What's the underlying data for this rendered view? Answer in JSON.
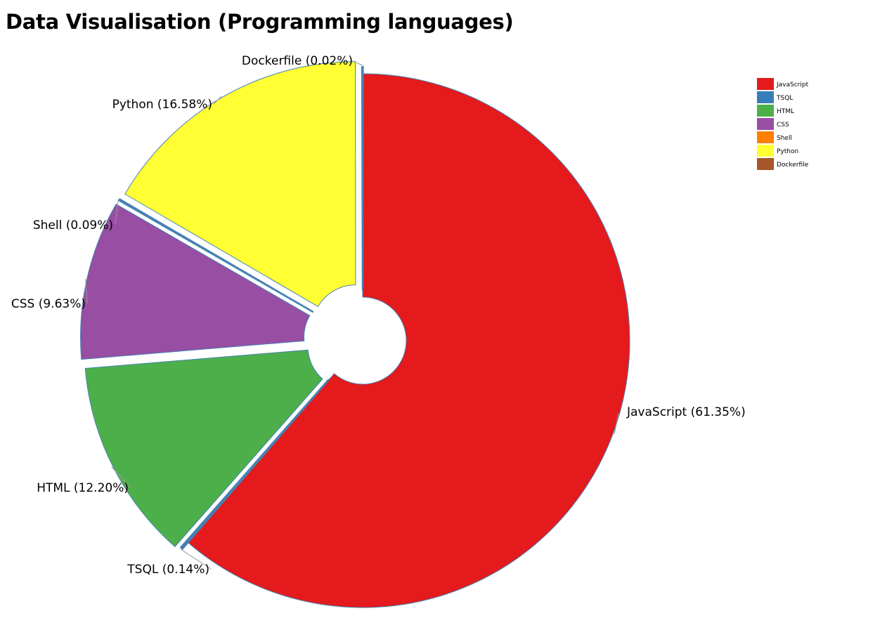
{
  "page": {
    "title": "Data Visualisation (Programming languages)"
  },
  "chart_data": {
    "type": "pie",
    "title": "Data Visualisation (Programming languages)",
    "unit": "%",
    "legend_position": "top-right",
    "slices": [
      {
        "name": "JavaScript",
        "value": 61.35,
        "label": "JavaScript (61.35%)",
        "color": "#e41a1c"
      },
      {
        "name": "TSQL",
        "value": 0.14,
        "label": "TSQL (0.14%)",
        "color": "#377eb8"
      },
      {
        "name": "HTML",
        "value": 12.2,
        "label": "HTML (12.20%)",
        "color": "#4daf4a"
      },
      {
        "name": "CSS",
        "value": 9.63,
        "label": "CSS (9.63%)",
        "color": "#984ea3"
      },
      {
        "name": "Shell",
        "value": 0.09,
        "label": "Shell (0.09%)",
        "color": "#ff7f00"
      },
      {
        "name": "Python",
        "value": 16.58,
        "label": "Python (16.58%)",
        "color": "#ffff33"
      },
      {
        "name": "Dockerfile",
        "value": 0.02,
        "label": "Dockerfile (0.02%)",
        "color": "#a65628"
      }
    ],
    "stroke_color": "#4682b4"
  }
}
